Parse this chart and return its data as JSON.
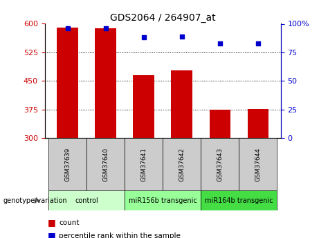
{
  "title": "GDS2064 / 264907_at",
  "samples": [
    "GSM37639",
    "GSM37640",
    "GSM37641",
    "GSM37642",
    "GSM37643",
    "GSM37644"
  ],
  "counts": [
    590,
    588,
    465,
    478,
    375,
    377
  ],
  "percentile_ranks": [
    96,
    96,
    88,
    89,
    83,
    83
  ],
  "ylim_left": [
    300,
    600
  ],
  "ylim_right": [
    0,
    100
  ],
  "yticks_left": [
    300,
    375,
    450,
    525,
    600
  ],
  "yticks_right": [
    0,
    25,
    50,
    75,
    100
  ],
  "bar_color": "#cc0000",
  "dot_color": "#0000cc",
  "bar_width": 0.55,
  "background_color": "#ffffff",
  "plot_bg_color": "#ffffff",
  "tick_label_color_left": "#cc0000",
  "tick_label_color_right": "#0000cc",
  "group_label": "genotype/variation",
  "legend_count_label": "count",
  "legend_pct_label": "percentile rank within the sample",
  "group_defs": [
    {
      "start": 0,
      "end": 1,
      "label": "control",
      "color": "#ccffcc"
    },
    {
      "start": 2,
      "end": 3,
      "label": "miR156b transgenic",
      "color": "#99ff99"
    },
    {
      "start": 4,
      "end": 5,
      "label": "miR164b transgenic",
      "color": "#44dd44"
    }
  ],
  "sample_box_color": "#cccccc"
}
